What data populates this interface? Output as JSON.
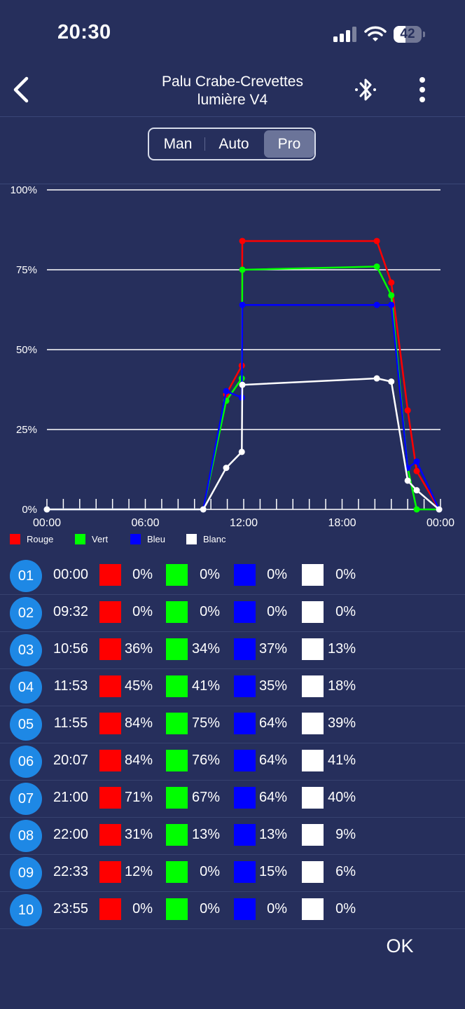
{
  "status_bar": {
    "time": "20:30",
    "battery": "42",
    "battery_level": 0.42
  },
  "header": {
    "title_line1": "Palu Crabe-Crevettes",
    "title_line2": "lumière V4",
    "back_icon": "chevron-left-icon",
    "bluetooth_icon": "bluetooth-icon",
    "more_icon": "more-vertical-icon"
  },
  "modes": {
    "items": [
      "Man",
      "Auto",
      "Pro"
    ],
    "selected": "Pro"
  },
  "chart_data": {
    "type": "line",
    "x_ticks": [
      "00:00",
      "06:00",
      "12:00",
      "18:00",
      "00:00"
    ],
    "y_ticks": [
      "0%",
      "25%",
      "50%",
      "75%",
      "100%"
    ],
    "ylim": [
      0,
      100
    ],
    "x_range": [
      "00:00",
      "24:00"
    ],
    "x": [
      "00:00",
      "09:32",
      "10:56",
      "11:53",
      "11:55",
      "20:07",
      "21:00",
      "22:00",
      "22:33",
      "23:55"
    ],
    "series": [
      {
        "name": "Rouge",
        "color": "#ff0000",
        "values": [
          0,
          0,
          36,
          45,
          84,
          84,
          71,
          31,
          12,
          0
        ]
      },
      {
        "name": "Vert",
        "color": "#00ff00",
        "values": [
          0,
          0,
          34,
          41,
          75,
          76,
          67,
          13,
          0,
          0
        ]
      },
      {
        "name": "Bleu",
        "color": "#0000ff",
        "values": [
          0,
          0,
          37,
          35,
          64,
          64,
          64,
          13,
          15,
          0
        ]
      },
      {
        "name": "Blanc",
        "color": "#ffffff",
        "values": [
          0,
          0,
          13,
          18,
          39,
          41,
          40,
          9,
          6,
          0
        ]
      }
    ],
    "grid": true,
    "legend": "bottom-left"
  },
  "table": {
    "rows": [
      {
        "index": "01",
        "time": "00:00",
        "red": "0%",
        "green": "0%",
        "blue": "0%",
        "white": "0%"
      },
      {
        "index": "02",
        "time": "09:32",
        "red": "0%",
        "green": "0%",
        "blue": "0%",
        "white": "0%"
      },
      {
        "index": "03",
        "time": "10:56",
        "red": "36%",
        "green": "34%",
        "blue": "37%",
        "white": "13%"
      },
      {
        "index": "04",
        "time": "11:53",
        "red": "45%",
        "green": "41%",
        "blue": "35%",
        "white": "18%"
      },
      {
        "index": "05",
        "time": "11:55",
        "red": "84%",
        "green": "75%",
        "blue": "64%",
        "white": "39%"
      },
      {
        "index": "06",
        "time": "20:07",
        "red": "84%",
        "green": "76%",
        "blue": "64%",
        "white": "41%"
      },
      {
        "index": "07",
        "time": "21:00",
        "red": "71%",
        "green": "67%",
        "blue": "64%",
        "white": "40%"
      },
      {
        "index": "08",
        "time": "22:00",
        "red": "31%",
        "green": "13%",
        "blue": "13%",
        "white": "9%"
      },
      {
        "index": "09",
        "time": "22:33",
        "red": "12%",
        "green": "0%",
        "blue": "15%",
        "white": "6%"
      },
      {
        "index": "10",
        "time": "23:55",
        "red": "0%",
        "green": "0%",
        "blue": "0%",
        "white": "0%"
      }
    ],
    "colors": {
      "red": "#ff0000",
      "green": "#00ff00",
      "blue": "#0000ff",
      "white": "#ffffff",
      "index_badge": "#1e88e5"
    }
  },
  "footer": {
    "ok_label": "OK"
  }
}
